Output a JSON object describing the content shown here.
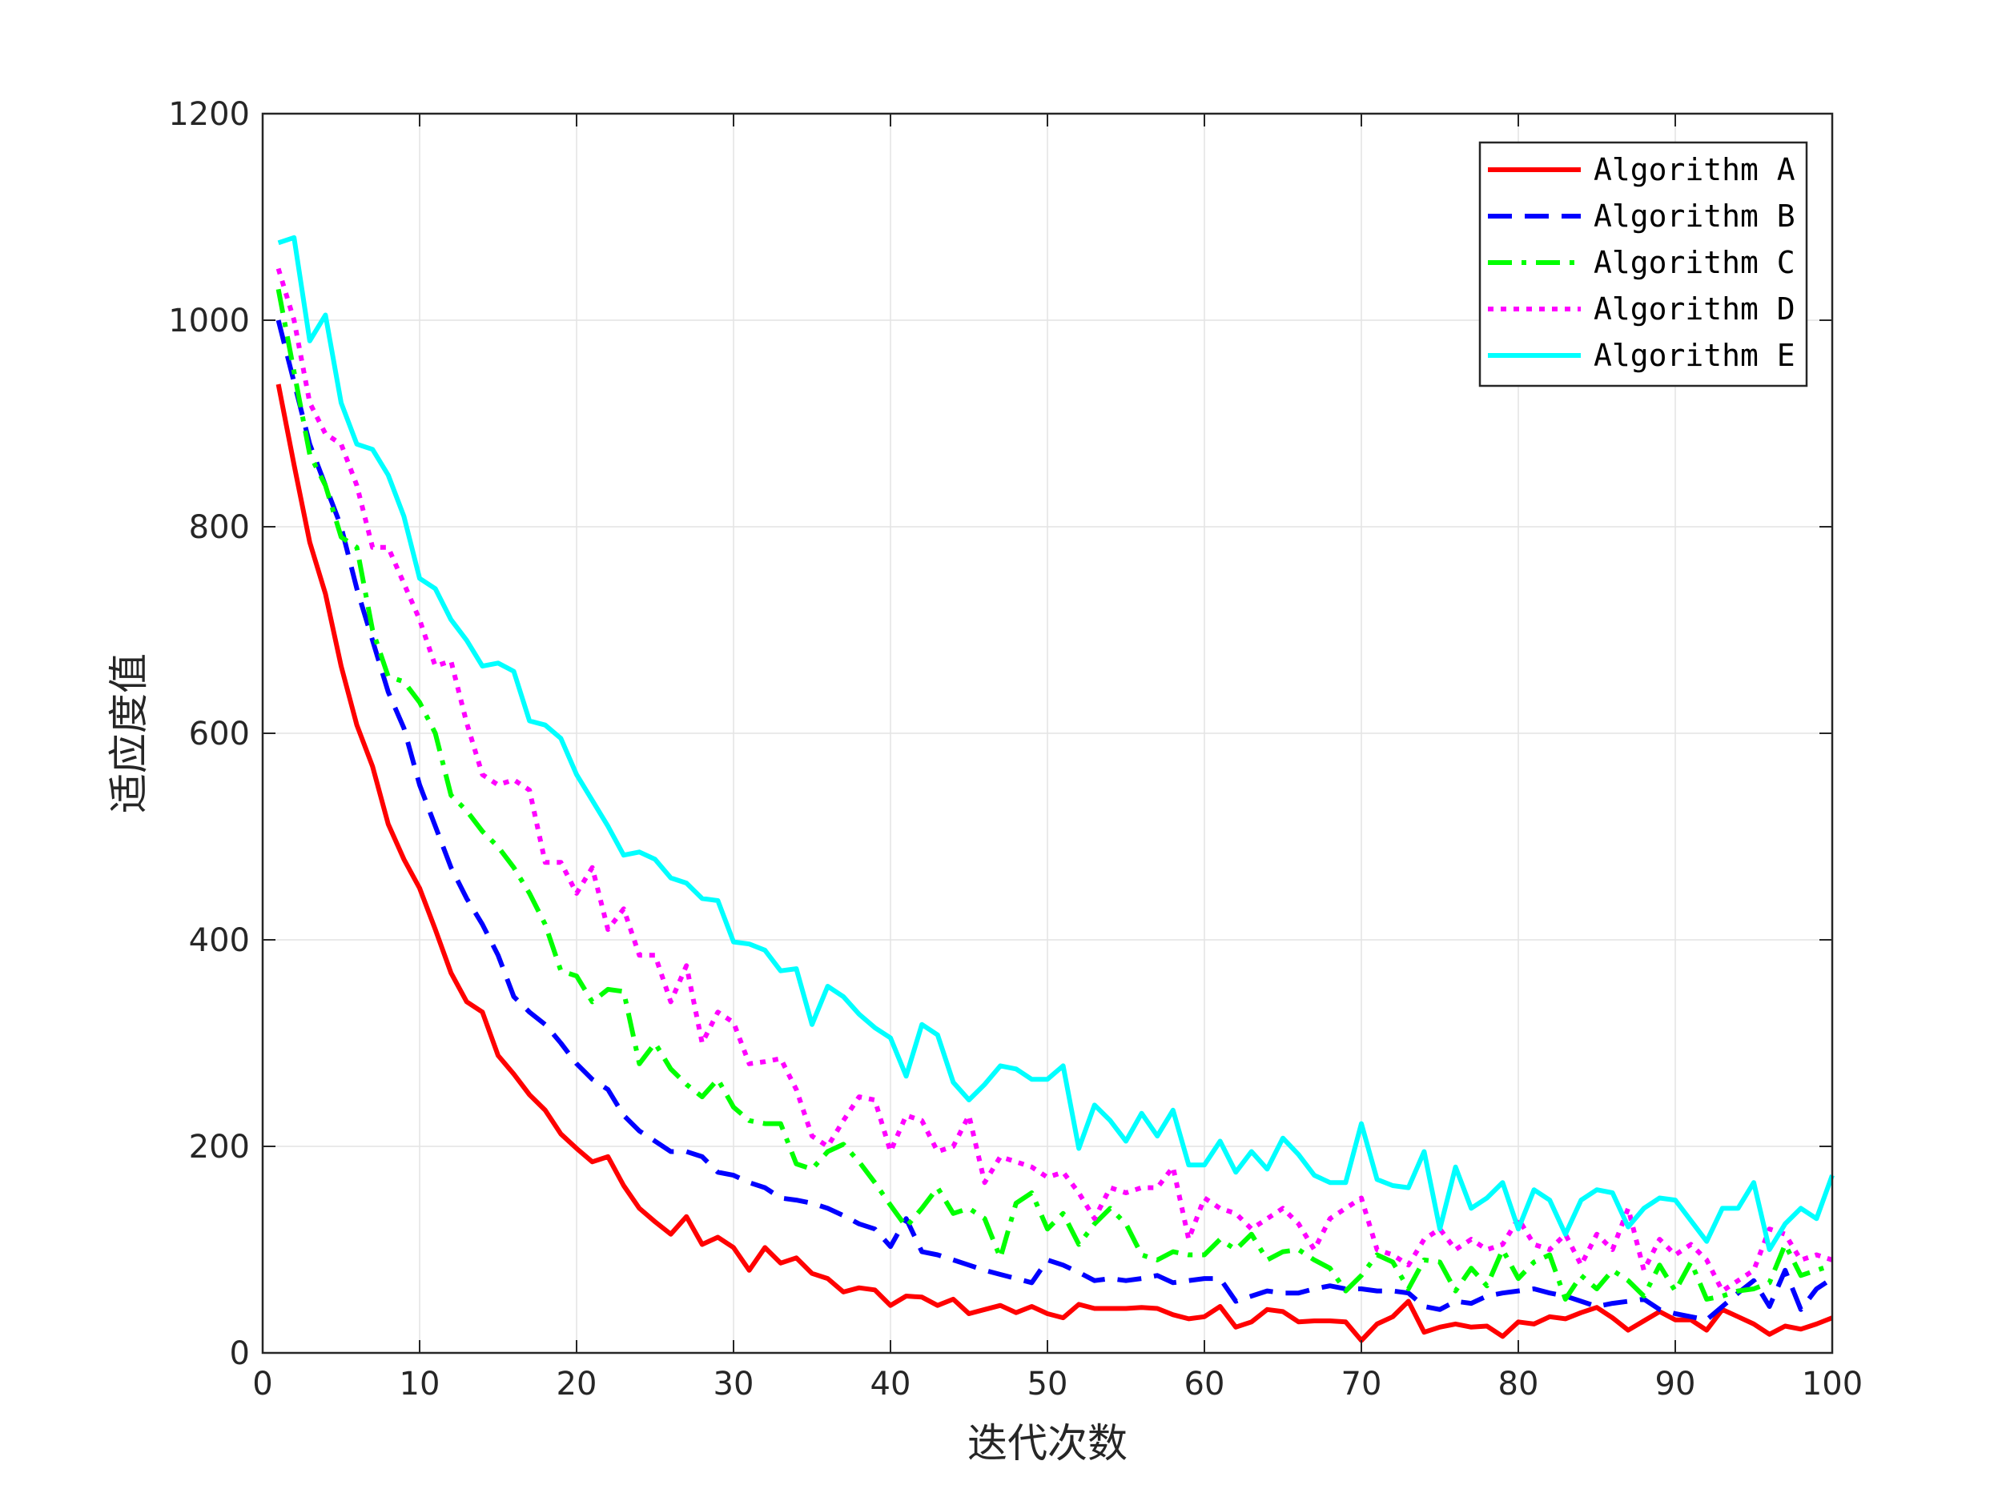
{
  "chart_data": {
    "type": "line",
    "title": "",
    "xlabel": "迭代次数",
    "ylabel": "适应度值",
    "xlim": [
      0,
      100
    ],
    "ylim": [
      0,
      1200
    ],
    "xticks": [
      0,
      10,
      20,
      30,
      40,
      50,
      60,
      70,
      80,
      90,
      100
    ],
    "yticks": [
      0,
      200,
      400,
      600,
      800,
      1000,
      1200
    ],
    "grid": true,
    "legend_position": "top-right",
    "x": [
      1,
      2,
      3,
      4,
      5,
      6,
      7,
      8,
      9,
      10,
      11,
      12,
      13,
      14,
      15,
      16,
      17,
      18,
      19,
      20,
      21,
      22,
      23,
      24,
      25,
      26,
      27,
      28,
      29,
      30,
      31,
      32,
      33,
      34,
      35,
      36,
      37,
      38,
      39,
      40,
      41,
      42,
      43,
      44,
      45,
      46,
      47,
      48,
      49,
      50,
      51,
      52,
      53,
      54,
      55,
      56,
      57,
      58,
      59,
      60,
      61,
      62,
      63,
      64,
      65,
      66,
      67,
      68,
      69,
      70,
      71,
      72,
      73,
      74,
      75,
      76,
      77,
      78,
      79,
      80,
      81,
      82,
      83,
      84,
      85,
      86,
      87,
      88,
      89,
      90,
      91,
      92,
      93,
      94,
      95,
      96,
      97,
      98,
      99,
      100
    ],
    "series": [
      {
        "name": "Algorithm A",
        "color": "#ff0000",
        "dash": "solid",
        "values": [
          938,
          860,
          785,
          735,
          665,
          608,
          568,
          512,
          478,
          450,
          410,
          368,
          340,
          330,
          288,
          270,
          250,
          235,
          212,
          198,
          185,
          190,
          162,
          140,
          127,
          115,
          132,
          105,
          112,
          102,
          80,
          102,
          87,
          92,
          77,
          72,
          59,
          63,
          61,
          46,
          55,
          54,
          46,
          52,
          38,
          42,
          46,
          39,
          45,
          38,
          34,
          47,
          43,
          43,
          43,
          44,
          43,
          37,
          33,
          35,
          45,
          25,
          30,
          42,
          40,
          30,
          31,
          31,
          30,
          12,
          28,
          35,
          50,
          20,
          25,
          28,
          25,
          26,
          16,
          30,
          28,
          35,
          33,
          39,
          44,
          34,
          22,
          31,
          40,
          32,
          32,
          22,
          42,
          35,
          28,
          18,
          26,
          23,
          28,
          34
        ]
      },
      {
        "name": "Algorithm B",
        "color": "#0000ff",
        "dash": "dash",
        "values": [
          1000,
          940,
          880,
          840,
          800,
          740,
          690,
          640,
          605,
          550,
          510,
          470,
          440,
          415,
          385,
          345,
          330,
          318,
          300,
          280,
          265,
          255,
          230,
          215,
          205,
          195,
          195,
          190,
          175,
          172,
          165,
          160,
          150,
          148,
          145,
          140,
          133,
          125,
          120,
          103,
          130,
          98,
          95,
          90,
          85,
          80,
          76,
          72,
          68,
          90,
          85,
          78,
          70,
          72,
          70,
          72,
          75,
          68,
          70,
          72,
          72,
          50,
          55,
          60,
          58,
          58,
          62,
          65,
          62,
          62,
          60,
          60,
          58,
          45,
          42,
          50,
          48,
          55,
          58,
          60,
          62,
          58,
          55,
          50,
          45,
          48,
          50,
          52,
          42,
          38,
          35,
          32,
          45,
          58,
          70,
          45,
          80,
          42,
          62,
          72
        ]
      },
      {
        "name": "Algorithm C",
        "color": "#00ff00",
        "dash": "dashdot",
        "values": [
          1030,
          950,
          870,
          840,
          790,
          780,
          700,
          655,
          650,
          630,
          600,
          540,
          525,
          505,
          490,
          470,
          445,
          415,
          370,
          365,
          340,
          352,
          350,
          280,
          300,
          275,
          260,
          248,
          265,
          238,
          225,
          222,
          222,
          183,
          178,
          195,
          202,
          185,
          165,
          143,
          122,
          140,
          160,
          135,
          140,
          130,
          92,
          145,
          155,
          120,
          135,
          105,
          125,
          140,
          125,
          95,
          90,
          98,
          95,
          95,
          110,
          100,
          115,
          90,
          98,
          100,
          90,
          82,
          60,
          75,
          95,
          88,
          62,
          90,
          88,
          60,
          82,
          65,
          100,
          72,
          88,
          95,
          52,
          75,
          62,
          80,
          70,
          55,
          85,
          60,
          88,
          52,
          55,
          60,
          62,
          68,
          105,
          75,
          80,
          85
        ]
      },
      {
        "name": "Algorithm D",
        "color": "#ff00ff",
        "dash": "dot",
        "values": [
          1050,
          1000,
          920,
          890,
          880,
          840,
          780,
          780,
          745,
          710,
          665,
          670,
          610,
          560,
          550,
          555,
          545,
          475,
          475,
          445,
          470,
          410,
          430,
          385,
          385,
          340,
          375,
          300,
          330,
          320,
          280,
          282,
          285,
          255,
          210,
          200,
          225,
          248,
          245,
          195,
          230,
          225,
          195,
          200,
          230,
          165,
          190,
          185,
          180,
          170,
          175,
          155,
          130,
          160,
          155,
          160,
          160,
          180,
          110,
          150,
          140,
          135,
          120,
          130,
          140,
          125,
          100,
          130,
          140,
          150,
          100,
          95,
          85,
          110,
          120,
          100,
          110,
          100,
          105,
          130,
          105,
          100,
          115,
          85,
          115,
          100,
          140,
          80,
          110,
          95,
          105,
          90,
          60,
          70,
          80,
          120,
          115,
          90,
          95,
          90
        ]
      },
      {
        "name": "Algorithm E",
        "color": "#00ffff",
        "dash": "solid",
        "values": [
          1075,
          1080,
          980,
          1005,
          920,
          880,
          875,
          850,
          810,
          750,
          740,
          710,
          690,
          665,
          668,
          660,
          612,
          608,
          595,
          560,
          535,
          510,
          482,
          485,
          478,
          460,
          455,
          440,
          438,
          398,
          396,
          390,
          370,
          372,
          318,
          355,
          345,
          328,
          315,
          305,
          268,
          318,
          308,
          262,
          245,
          260,
          278,
          275,
          265,
          265,
          278,
          198,
          240,
          225,
          205,
          232,
          210,
          235,
          182,
          182,
          205,
          175,
          195,
          178,
          208,
          192,
          172,
          165,
          165,
          222,
          168,
          162,
          160,
          195,
          120,
          180,
          140,
          150,
          165,
          120,
          158,
          148,
          115,
          148,
          158,
          155,
          122,
          140,
          150,
          148,
          128,
          108,
          140,
          140,
          165,
          100,
          125,
          140,
          130,
          172
        ]
      }
    ]
  }
}
